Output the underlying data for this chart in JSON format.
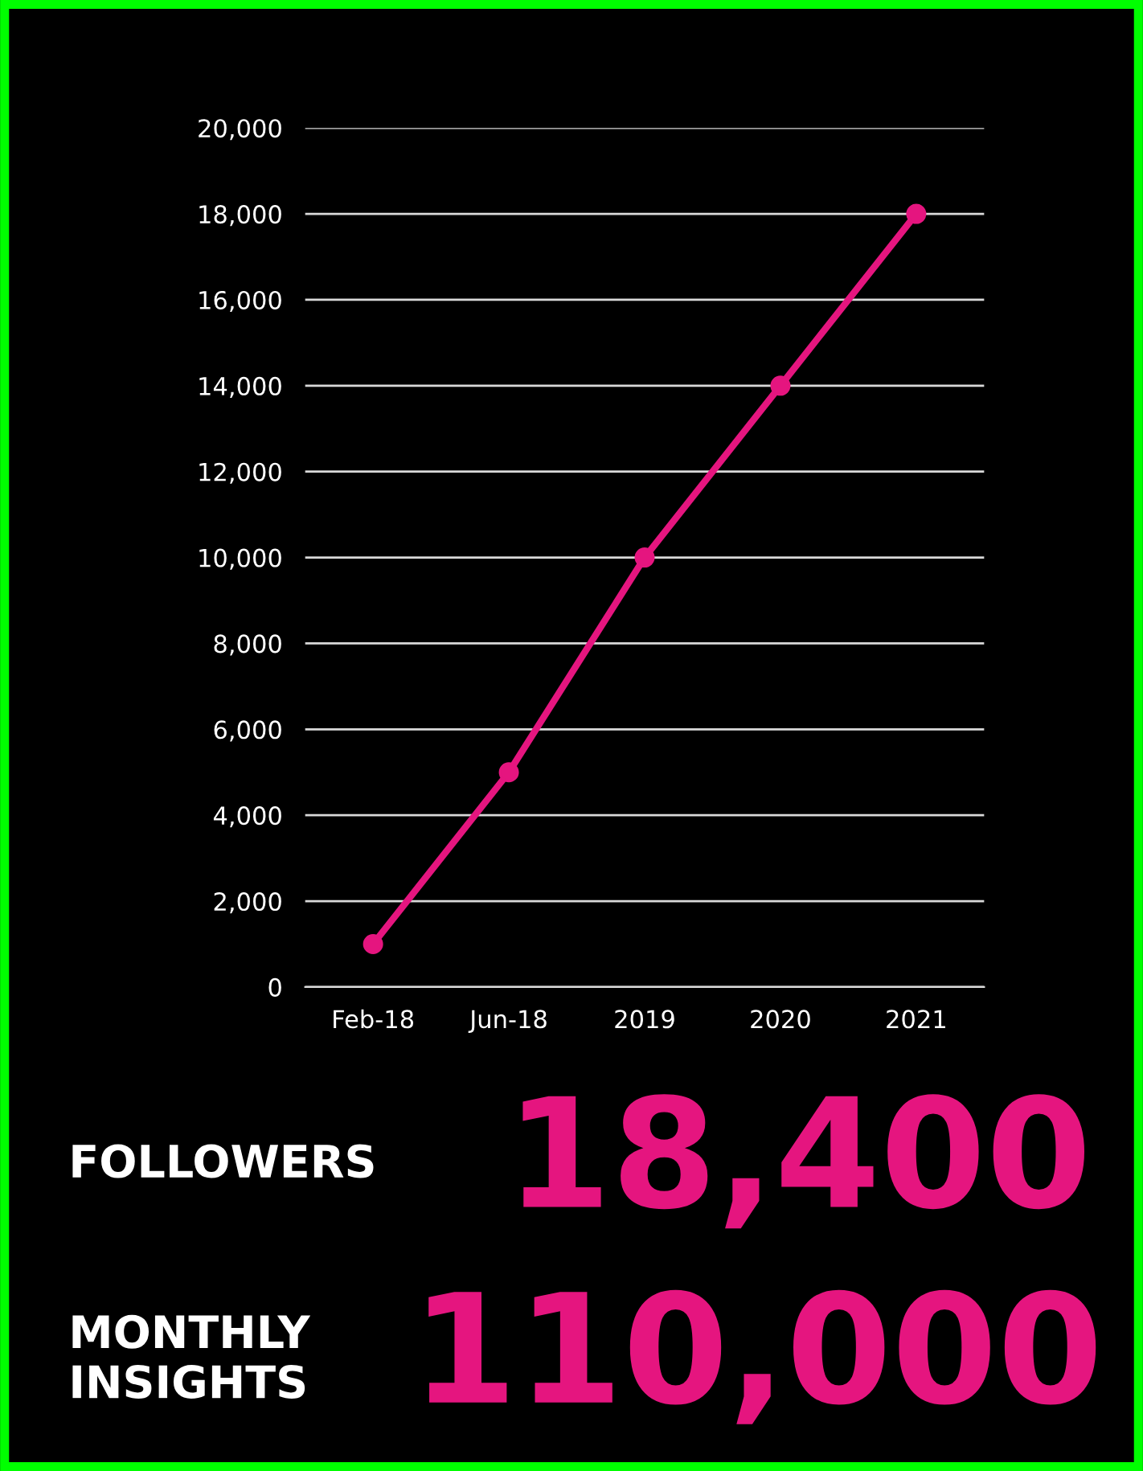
{
  "chart_data": {
    "type": "line",
    "categories": [
      "Feb-18",
      "Jun-18",
      "2019",
      "2020",
      "2021"
    ],
    "series": [
      {
        "color": "#e5157f",
        "values": [
          1000,
          5000,
          10000,
          14000,
          18000
        ]
      }
    ],
    "ylim": [
      0,
      20000
    ],
    "yticks": [
      {
        "value": 0,
        "label": "0"
      },
      {
        "value": 2000,
        "label": "2,000"
      },
      {
        "value": 4000,
        "label": "4,000"
      },
      {
        "value": 6000,
        "label": "6,000"
      },
      {
        "value": 8000,
        "label": "8,000"
      },
      {
        "value": 10000,
        "label": "10,000"
      },
      {
        "value": 12000,
        "label": "12,000"
      },
      {
        "value": 14000,
        "label": "14,000"
      },
      {
        "value": 16000,
        "label": "16,000"
      },
      {
        "value": 18000,
        "label": "18,000"
      },
      {
        "value": 20000,
        "label": "20,000"
      }
    ],
    "grid": "y",
    "marker": "circle",
    "line_style": "solid",
    "annotations": [
      "FOLLOWERS",
      "18,400",
      "MONTHLY\nINSIGHTS",
      "110,000"
    ]
  }
}
